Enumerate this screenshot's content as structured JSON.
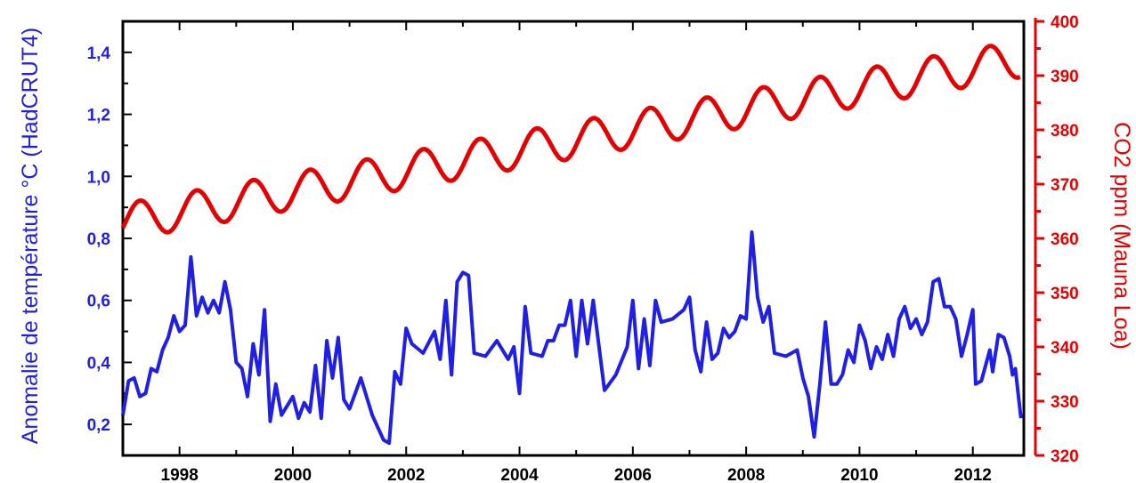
{
  "chart_data": {
    "type": "line",
    "xlabel": "",
    "x_ticks": [
      "1998",
      "2000",
      "2002",
      "2004",
      "2006",
      "2008",
      "2010",
      "2012"
    ],
    "xlim": [
      1997,
      2012.9
    ],
    "y_left": {
      "label": "Anomalie de température °C (HadCRUT4)",
      "ylim": [
        0.1,
        1.5
      ],
      "ticks": [
        "0,2",
        "0,4",
        "0,6",
        "0,8",
        "1,0",
        "1,2",
        "1,4"
      ],
      "color": "#1f1fe6"
    },
    "y_right": {
      "label": "CO2 ppm (Mauna Loa)",
      "ylim": [
        320,
        400
      ],
      "ticks": [
        "320",
        "330",
        "340",
        "350",
        "360",
        "370",
        "380",
        "390",
        "400"
      ],
      "color": "#e60000"
    },
    "series": [
      {
        "axis": "left",
        "color": "#1f1fe6",
        "points": [
          [
            1997.0,
            0.23
          ],
          [
            1997.1,
            0.34
          ],
          [
            1997.2,
            0.35
          ],
          [
            1997.3,
            0.29
          ],
          [
            1997.4,
            0.3
          ],
          [
            1997.5,
            0.38
          ],
          [
            1997.6,
            0.37
          ],
          [
            1997.7,
            0.44
          ],
          [
            1997.8,
            0.48
          ],
          [
            1997.9,
            0.55
          ],
          [
            1998.0,
            0.5
          ],
          [
            1998.1,
            0.52
          ],
          [
            1998.2,
            0.74
          ],
          [
            1998.3,
            0.55
          ],
          [
            1998.4,
            0.61
          ],
          [
            1998.5,
            0.56
          ],
          [
            1998.6,
            0.6
          ],
          [
            1998.7,
            0.56
          ],
          [
            1998.8,
            0.66
          ],
          [
            1998.9,
            0.57
          ],
          [
            1999.0,
            0.4
          ],
          [
            1999.1,
            0.38
          ],
          [
            1999.2,
            0.29
          ],
          [
            1999.3,
            0.46
          ],
          [
            1999.4,
            0.36
          ],
          [
            1999.5,
            0.57
          ],
          [
            1999.6,
            0.21
          ],
          [
            1999.7,
            0.33
          ],
          [
            1999.8,
            0.23
          ],
          [
            1999.9,
            0.26
          ],
          [
            2000.0,
            0.29
          ],
          [
            2000.1,
            0.22
          ],
          [
            2000.2,
            0.27
          ],
          [
            2000.3,
            0.24
          ],
          [
            2000.4,
            0.39
          ],
          [
            2000.5,
            0.22
          ],
          [
            2000.6,
            0.47
          ],
          [
            2000.7,
            0.35
          ],
          [
            2000.8,
            0.48
          ],
          [
            2000.9,
            0.28
          ],
          [
            2001.0,
            0.25
          ],
          [
            2001.2,
            0.35
          ],
          [
            2001.4,
            0.23
          ],
          [
            2001.6,
            0.15
          ],
          [
            2001.7,
            0.14
          ],
          [
            2001.8,
            0.37
          ],
          [
            2001.9,
            0.33
          ],
          [
            2002.0,
            0.51
          ],
          [
            2002.1,
            0.46
          ],
          [
            2002.3,
            0.43
          ],
          [
            2002.5,
            0.5
          ],
          [
            2002.6,
            0.41
          ],
          [
            2002.7,
            0.6
          ],
          [
            2002.8,
            0.36
          ],
          [
            2002.9,
            0.66
          ],
          [
            2003.0,
            0.69
          ],
          [
            2003.1,
            0.68
          ],
          [
            2003.2,
            0.43
          ],
          [
            2003.4,
            0.42
          ],
          [
            2003.6,
            0.47
          ],
          [
            2003.8,
            0.41
          ],
          [
            2003.9,
            0.45
          ],
          [
            2004.0,
            0.3
          ],
          [
            2004.1,
            0.58
          ],
          [
            2004.2,
            0.43
          ],
          [
            2004.4,
            0.42
          ],
          [
            2004.5,
            0.47
          ],
          [
            2004.6,
            0.47
          ],
          [
            2004.7,
            0.52
          ],
          [
            2004.8,
            0.52
          ],
          [
            2004.9,
            0.6
          ],
          [
            2005.0,
            0.42
          ],
          [
            2005.1,
            0.6
          ],
          [
            2005.2,
            0.46
          ],
          [
            2005.3,
            0.6
          ],
          [
            2005.5,
            0.31
          ],
          [
            2005.7,
            0.36
          ],
          [
            2005.9,
            0.45
          ],
          [
            2006.0,
            0.6
          ],
          [
            2006.1,
            0.38
          ],
          [
            2006.2,
            0.54
          ],
          [
            2006.3,
            0.39
          ],
          [
            2006.4,
            0.6
          ],
          [
            2006.5,
            0.53
          ],
          [
            2006.7,
            0.54
          ],
          [
            2006.9,
            0.57
          ],
          [
            2007.0,
            0.61
          ],
          [
            2007.1,
            0.44
          ],
          [
            2007.2,
            0.37
          ],
          [
            2007.3,
            0.53
          ],
          [
            2007.4,
            0.41
          ],
          [
            2007.5,
            0.43
          ],
          [
            2007.6,
            0.51
          ],
          [
            2007.7,
            0.48
          ],
          [
            2007.8,
            0.5
          ],
          [
            2007.9,
            0.55
          ],
          [
            2008.0,
            0.54
          ],
          [
            2008.1,
            0.82
          ],
          [
            2008.2,
            0.61
          ],
          [
            2008.3,
            0.53
          ],
          [
            2008.4,
            0.58
          ],
          [
            2008.5,
            0.43
          ],
          [
            2008.7,
            0.42
          ],
          [
            2008.9,
            0.44
          ],
          [
            2009.0,
            0.35
          ],
          [
            2009.1,
            0.29
          ],
          [
            2009.2,
            0.16
          ],
          [
            2009.3,
            0.33
          ],
          [
            2009.4,
            0.53
          ],
          [
            2009.5,
            0.33
          ],
          [
            2009.6,
            0.33
          ],
          [
            2009.7,
            0.36
          ],
          [
            2009.8,
            0.44
          ],
          [
            2009.9,
            0.4
          ],
          [
            2010.0,
            0.52
          ],
          [
            2010.1,
            0.47
          ],
          [
            2010.2,
            0.38
          ],
          [
            2010.3,
            0.45
          ],
          [
            2010.4,
            0.41
          ],
          [
            2010.5,
            0.49
          ],
          [
            2010.6,
            0.42
          ],
          [
            2010.7,
            0.54
          ],
          [
            2010.8,
            0.58
          ],
          [
            2010.9,
            0.51
          ],
          [
            2011.0,
            0.54
          ],
          [
            2011.1,
            0.49
          ],
          [
            2011.2,
            0.53
          ],
          [
            2011.3,
            0.66
          ],
          [
            2011.4,
            0.67
          ],
          [
            2011.5,
            0.58
          ],
          [
            2011.6,
            0.58
          ],
          [
            2011.7,
            0.54
          ],
          [
            2011.8,
            0.42
          ],
          [
            2011.9,
            0.49
          ],
          [
            2012.0,
            0.57
          ],
          [
            2012.05,
            0.33
          ],
          [
            2012.15,
            0.34
          ],
          [
            2012.3,
            0.44
          ],
          [
            2012.35,
            0.37
          ],
          [
            2012.45,
            0.49
          ],
          [
            2012.55,
            0.48
          ],
          [
            2012.65,
            0.42
          ],
          [
            2012.7,
            0.36
          ],
          [
            2012.75,
            0.38
          ],
          [
            2012.8,
            0.3
          ],
          [
            2012.85,
            0.22
          ]
        ]
      },
      {
        "axis": "right",
        "color": "#e60000",
        "start": 1997.0,
        "end": 2012.85,
        "base": 363.0,
        "trend_per_year": 1.9,
        "seasonal_amplitude": 3.4
      }
    ]
  }
}
